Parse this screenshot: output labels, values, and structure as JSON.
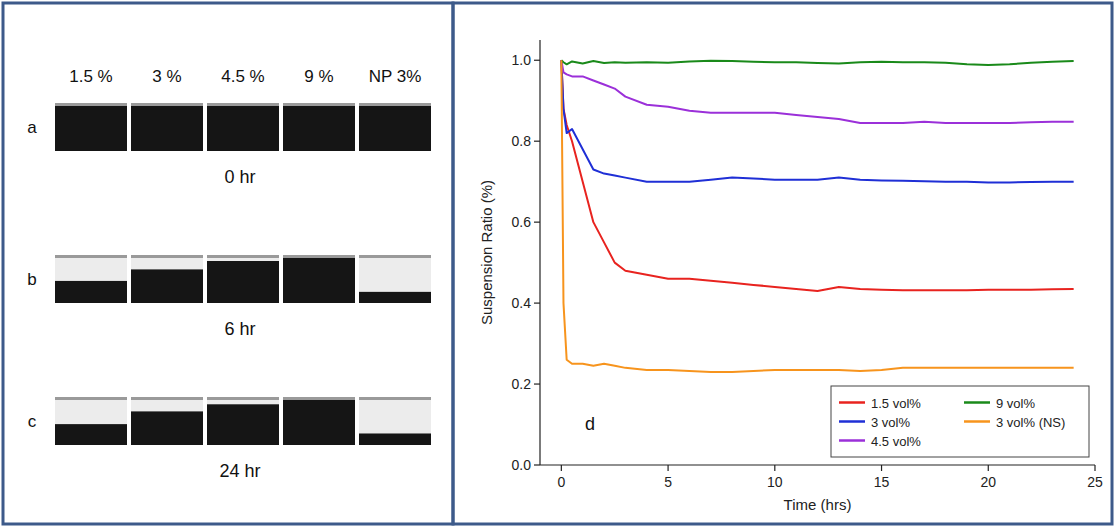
{
  "photos": {
    "columns": [
      "1.5 %",
      "3 %",
      "4.5 %",
      "9 %",
      "NP 3%"
    ],
    "rows": [
      {
        "letter": "a",
        "label": "0 hr",
        "time": 0
      },
      {
        "letter": "b",
        "label": "6 hr",
        "time": 6
      },
      {
        "letter": "c",
        "label": "24 hr",
        "time": 24
      }
    ]
  },
  "chart_data": {
    "type": "line",
    "annotations": [
      "d"
    ],
    "x_label": "Time (hrs)",
    "y_label": "Suspension Ratio (%)",
    "x": [
      0,
      0.1,
      0.25,
      0.5,
      1,
      1.5,
      2,
      2.5,
      3,
      4,
      5,
      6,
      7,
      8,
      9,
      10,
      11,
      12,
      13,
      14,
      15,
      16,
      17,
      18,
      19,
      20,
      21,
      22,
      23,
      24
    ],
    "series": [
      {
        "name": "1.5 vol%",
        "color": "#e8231f",
        "values": [
          1.0,
          0.88,
          0.84,
          0.8,
          0.7,
          0.6,
          0.55,
          0.5,
          0.48,
          0.47,
          0.46,
          0.46,
          0.455,
          0.45,
          0.445,
          0.44,
          0.435,
          0.43,
          0.44,
          0.435,
          0.433,
          0.432,
          0.432,
          0.432,
          0.432,
          0.433,
          0.433,
          0.433,
          0.434,
          0.435
        ]
      },
      {
        "name": "3 vol%",
        "color": "#1f2fd6",
        "values": [
          1.0,
          0.88,
          0.82,
          0.83,
          0.78,
          0.73,
          0.72,
          0.715,
          0.71,
          0.7,
          0.7,
          0.7,
          0.705,
          0.71,
          0.708,
          0.705,
          0.705,
          0.705,
          0.71,
          0.705,
          0.703,
          0.702,
          0.701,
          0.7,
          0.7,
          0.698,
          0.698,
          0.699,
          0.7,
          0.7
        ]
      },
      {
        "name": "4.5 vol%",
        "color": "#9b30d9",
        "values": [
          1.0,
          0.97,
          0.965,
          0.96,
          0.96,
          0.95,
          0.94,
          0.93,
          0.91,
          0.89,
          0.885,
          0.875,
          0.87,
          0.87,
          0.87,
          0.87,
          0.865,
          0.86,
          0.855,
          0.845,
          0.845,
          0.845,
          0.848,
          0.845,
          0.845,
          0.845,
          0.845,
          0.847,
          0.848,
          0.848
        ]
      },
      {
        "name": "9 vol%",
        "color": "#1a8a1a",
        "values": [
          1.0,
          0.995,
          0.99,
          0.997,
          0.992,
          0.998,
          0.993,
          0.995,
          0.994,
          0.995,
          0.994,
          0.997,
          0.999,
          0.998,
          0.996,
          0.995,
          0.995,
          0.993,
          0.992,
          0.995,
          0.996,
          0.995,
          0.995,
          0.994,
          0.99,
          0.988,
          0.99,
          0.994,
          0.996,
          0.998
        ]
      },
      {
        "name": "3 vol% (NS)",
        "color": "#f7941d",
        "values": [
          1.0,
          0.4,
          0.26,
          0.25,
          0.25,
          0.245,
          0.25,
          0.245,
          0.24,
          0.235,
          0.235,
          0.232,
          0.23,
          0.23,
          0.232,
          0.235,
          0.235,
          0.235,
          0.235,
          0.232,
          0.235,
          0.24,
          0.24,
          0.24,
          0.24,
          0.24,
          0.24,
          0.24,
          0.24,
          0.24
        ]
      }
    ],
    "xlim": [
      -1,
      25
    ],
    "xticks": [
      0,
      5,
      10,
      15,
      20,
      25
    ],
    "ylim": [
      0,
      1.05
    ],
    "yticks": [
      {
        "value": 0,
        "label": "0.0"
      },
      0.2,
      0.4,
      0.6,
      0.8,
      {
        "value": 1,
        "label": "1.0"
      }
    ],
    "grid": false,
    "legend": "lower right"
  }
}
